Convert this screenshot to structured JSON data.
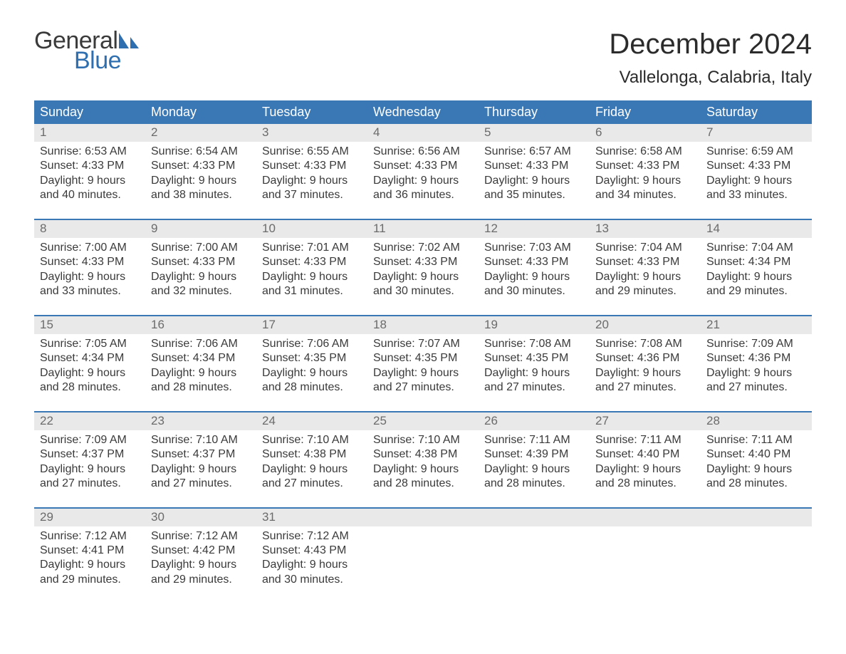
{
  "logo": {
    "text_general": "General",
    "text_blue": "Blue",
    "sail_color": "#2f6fb0"
  },
  "title": "December 2024",
  "location": "Vallelonga, Calabria, Italy",
  "colors": {
    "header_bg": "#3a78b5",
    "header_text": "#ffffff",
    "daynum_bg": "#e9e9e9",
    "daynum_text": "#6b6b6b",
    "body_text": "#3a3a3a",
    "rule": "#3a78b5"
  },
  "daynames": [
    "Sunday",
    "Monday",
    "Tuesday",
    "Wednesday",
    "Thursday",
    "Friday",
    "Saturday"
  ],
  "weeks": [
    [
      {
        "n": "1",
        "sr": "Sunrise: 6:53 AM",
        "ss": "Sunset: 4:33 PM",
        "d1": "Daylight: 9 hours",
        "d2": "and 40 minutes."
      },
      {
        "n": "2",
        "sr": "Sunrise: 6:54 AM",
        "ss": "Sunset: 4:33 PM",
        "d1": "Daylight: 9 hours",
        "d2": "and 38 minutes."
      },
      {
        "n": "3",
        "sr": "Sunrise: 6:55 AM",
        "ss": "Sunset: 4:33 PM",
        "d1": "Daylight: 9 hours",
        "d2": "and 37 minutes."
      },
      {
        "n": "4",
        "sr": "Sunrise: 6:56 AM",
        "ss": "Sunset: 4:33 PM",
        "d1": "Daylight: 9 hours",
        "d2": "and 36 minutes."
      },
      {
        "n": "5",
        "sr": "Sunrise: 6:57 AM",
        "ss": "Sunset: 4:33 PM",
        "d1": "Daylight: 9 hours",
        "d2": "and 35 minutes."
      },
      {
        "n": "6",
        "sr": "Sunrise: 6:58 AM",
        "ss": "Sunset: 4:33 PM",
        "d1": "Daylight: 9 hours",
        "d2": "and 34 minutes."
      },
      {
        "n": "7",
        "sr": "Sunrise: 6:59 AM",
        "ss": "Sunset: 4:33 PM",
        "d1": "Daylight: 9 hours",
        "d2": "and 33 minutes."
      }
    ],
    [
      {
        "n": "8",
        "sr": "Sunrise: 7:00 AM",
        "ss": "Sunset: 4:33 PM",
        "d1": "Daylight: 9 hours",
        "d2": "and 33 minutes."
      },
      {
        "n": "9",
        "sr": "Sunrise: 7:00 AM",
        "ss": "Sunset: 4:33 PM",
        "d1": "Daylight: 9 hours",
        "d2": "and 32 minutes."
      },
      {
        "n": "10",
        "sr": "Sunrise: 7:01 AM",
        "ss": "Sunset: 4:33 PM",
        "d1": "Daylight: 9 hours",
        "d2": "and 31 minutes."
      },
      {
        "n": "11",
        "sr": "Sunrise: 7:02 AM",
        "ss": "Sunset: 4:33 PM",
        "d1": "Daylight: 9 hours",
        "d2": "and 30 minutes."
      },
      {
        "n": "12",
        "sr": "Sunrise: 7:03 AM",
        "ss": "Sunset: 4:33 PM",
        "d1": "Daylight: 9 hours",
        "d2": "and 30 minutes."
      },
      {
        "n": "13",
        "sr": "Sunrise: 7:04 AM",
        "ss": "Sunset: 4:33 PM",
        "d1": "Daylight: 9 hours",
        "d2": "and 29 minutes."
      },
      {
        "n": "14",
        "sr": "Sunrise: 7:04 AM",
        "ss": "Sunset: 4:34 PM",
        "d1": "Daylight: 9 hours",
        "d2": "and 29 minutes."
      }
    ],
    [
      {
        "n": "15",
        "sr": "Sunrise: 7:05 AM",
        "ss": "Sunset: 4:34 PM",
        "d1": "Daylight: 9 hours",
        "d2": "and 28 minutes."
      },
      {
        "n": "16",
        "sr": "Sunrise: 7:06 AM",
        "ss": "Sunset: 4:34 PM",
        "d1": "Daylight: 9 hours",
        "d2": "and 28 minutes."
      },
      {
        "n": "17",
        "sr": "Sunrise: 7:06 AM",
        "ss": "Sunset: 4:35 PM",
        "d1": "Daylight: 9 hours",
        "d2": "and 28 minutes."
      },
      {
        "n": "18",
        "sr": "Sunrise: 7:07 AM",
        "ss": "Sunset: 4:35 PM",
        "d1": "Daylight: 9 hours",
        "d2": "and 27 minutes."
      },
      {
        "n": "19",
        "sr": "Sunrise: 7:08 AM",
        "ss": "Sunset: 4:35 PM",
        "d1": "Daylight: 9 hours",
        "d2": "and 27 minutes."
      },
      {
        "n": "20",
        "sr": "Sunrise: 7:08 AM",
        "ss": "Sunset: 4:36 PM",
        "d1": "Daylight: 9 hours",
        "d2": "and 27 minutes."
      },
      {
        "n": "21",
        "sr": "Sunrise: 7:09 AM",
        "ss": "Sunset: 4:36 PM",
        "d1": "Daylight: 9 hours",
        "d2": "and 27 minutes."
      }
    ],
    [
      {
        "n": "22",
        "sr": "Sunrise: 7:09 AM",
        "ss": "Sunset: 4:37 PM",
        "d1": "Daylight: 9 hours",
        "d2": "and 27 minutes."
      },
      {
        "n": "23",
        "sr": "Sunrise: 7:10 AM",
        "ss": "Sunset: 4:37 PM",
        "d1": "Daylight: 9 hours",
        "d2": "and 27 minutes."
      },
      {
        "n": "24",
        "sr": "Sunrise: 7:10 AM",
        "ss": "Sunset: 4:38 PM",
        "d1": "Daylight: 9 hours",
        "d2": "and 27 minutes."
      },
      {
        "n": "25",
        "sr": "Sunrise: 7:10 AM",
        "ss": "Sunset: 4:38 PM",
        "d1": "Daylight: 9 hours",
        "d2": "and 28 minutes."
      },
      {
        "n": "26",
        "sr": "Sunrise: 7:11 AM",
        "ss": "Sunset: 4:39 PM",
        "d1": "Daylight: 9 hours",
        "d2": "and 28 minutes."
      },
      {
        "n": "27",
        "sr": "Sunrise: 7:11 AM",
        "ss": "Sunset: 4:40 PM",
        "d1": "Daylight: 9 hours",
        "d2": "and 28 minutes."
      },
      {
        "n": "28",
        "sr": "Sunrise: 7:11 AM",
        "ss": "Sunset: 4:40 PM",
        "d1": "Daylight: 9 hours",
        "d2": "and 28 minutes."
      }
    ],
    [
      {
        "n": "29",
        "sr": "Sunrise: 7:12 AM",
        "ss": "Sunset: 4:41 PM",
        "d1": "Daylight: 9 hours",
        "d2": "and 29 minutes."
      },
      {
        "n": "30",
        "sr": "Sunrise: 7:12 AM",
        "ss": "Sunset: 4:42 PM",
        "d1": "Daylight: 9 hours",
        "d2": "and 29 minutes."
      },
      {
        "n": "31",
        "sr": "Sunrise: 7:12 AM",
        "ss": "Sunset: 4:43 PM",
        "d1": "Daylight: 9 hours",
        "d2": "and 30 minutes."
      },
      null,
      null,
      null,
      null
    ]
  ]
}
